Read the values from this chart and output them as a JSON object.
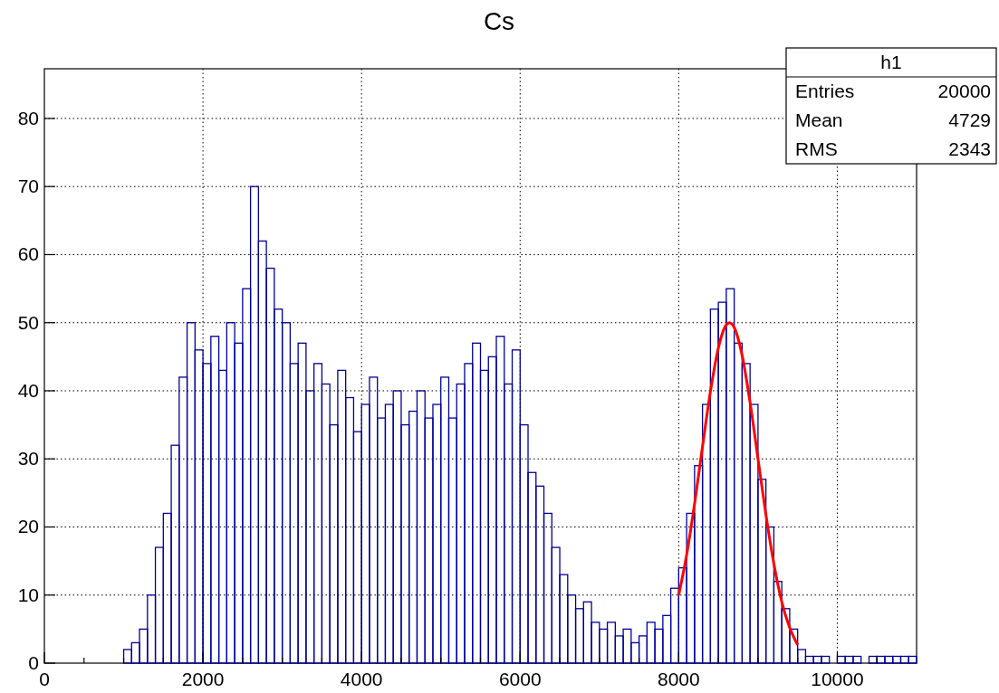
{
  "chart_data": {
    "type": "histogram",
    "title": "Cs",
    "xlim": [
      0,
      11000
    ],
    "ylim": [
      0,
      87.3
    ],
    "xticks": [
      0,
      {
        "value": 500,
        "label": null
      },
      {
        "value": 1000,
        "label": null
      },
      {
        "value": 1500,
        "label": null
      },
      2000,
      {
        "value": 2500,
        "label": null
      },
      {
        "value": 3000,
        "label": null
      },
      {
        "value": 3500,
        "label": null
      },
      4000,
      {
        "value": 4500,
        "label": null
      },
      {
        "value": 5000,
        "label": null
      },
      {
        "value": 5500,
        "label": null
      },
      6000,
      {
        "value": 6500,
        "label": null
      },
      {
        "value": 7000,
        "label": null
      },
      {
        "value": 7500,
        "label": null
      },
      8000,
      {
        "value": 8500,
        "label": null
      },
      {
        "value": 9000,
        "label": null
      },
      {
        "value": 9500,
        "label": null
      },
      10000,
      {
        "value": 10500,
        "label": null
      }
    ],
    "yticks": [
      0,
      10,
      20,
      30,
      40,
      50,
      60,
      70,
      80
    ],
    "grid": true,
    "annotations": [
      "h1",
      "Entries 20000",
      "Mean 4729",
      "RMS 2343"
    ],
    "series": [
      {
        "color": "#000099",
        "bins": [
          0,
          100,
          200,
          300,
          400,
          500,
          600,
          700,
          800,
          900,
          1000,
          1100,
          1200,
          1300,
          1400,
          1500,
          1600,
          1700,
          1800,
          1900,
          2000,
          2100,
          2200,
          2300,
          2400,
          2500,
          2600,
          2700,
          2800,
          2900,
          3000,
          3100,
          3200,
          3300,
          3400,
          3500,
          3600,
          3700,
          3800,
          3900,
          4000,
          4100,
          4200,
          4300,
          4400,
          4500,
          4600,
          4700,
          4800,
          4900,
          5000,
          5100,
          5200,
          5300,
          5400,
          5500,
          5600,
          5700,
          5800,
          5900,
          6000,
          6100,
          6200,
          6300,
          6400,
          6500,
          6600,
          6700,
          6800,
          6900,
          7000,
          7100,
          7200,
          7300,
          7400,
          7500,
          7600,
          7700,
          7800,
          7900,
          8000,
          8100,
          8200,
          8300,
          8400,
          8500,
          8600,
          8700,
          8800,
          8900,
          9000,
          9100,
          9200,
          9300,
          9400,
          9500,
          9600,
          9700,
          9800,
          9900,
          10000,
          10100,
          10200,
          10300,
          10400,
          10500,
          10600,
          10700,
          10800,
          10900,
          11000
        ],
        "values": [
          0,
          0,
          0,
          0,
          0,
          0,
          0,
          0,
          0,
          0,
          2,
          3,
          5,
          10,
          17,
          22,
          32,
          42,
          50,
          46,
          44,
          48,
          43,
          50,
          47,
          55,
          70,
          62,
          58,
          52,
          50,
          44,
          47,
          40,
          44,
          41,
          35,
          43,
          39,
          34,
          38,
          42,
          36,
          38,
          40,
          35,
          37,
          40,
          36,
          38,
          42,
          36,
          41,
          44,
          47,
          43,
          45,
          48,
          41,
          46,
          35,
          28,
          26,
          22,
          17,
          13,
          10,
          8,
          9,
          6,
          5,
          6,
          4,
          5,
          3,
          4,
          6,
          5,
          7,
          11,
          14,
          22,
          29,
          38,
          52,
          53,
          55,
          47,
          44,
          38,
          27,
          20,
          12,
          8,
          5,
          2,
          1,
          1,
          1,
          0,
          1,
          1,
          1,
          0,
          1,
          1,
          1,
          1,
          1,
          1
        ]
      },
      {
        "type": "line",
        "color": "#ff0000",
        "x": [
          8000,
          8100,
          8200,
          8300,
          8400,
          8500,
          8600,
          8640,
          8700,
          8800,
          8900,
          9000,
          9100,
          9200,
          9300,
          9400,
          9500
        ],
        "values": [
          10,
          15.9,
          23.4,
          31.8,
          39.9,
          46.3,
          49.7,
          50,
          49.3,
          45.2,
          38.3,
          30,
          21.8,
          14.6,
          9,
          5.2,
          2.7
        ]
      }
    ]
  }
}
